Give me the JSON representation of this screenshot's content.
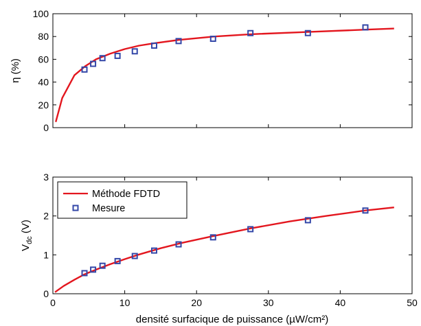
{
  "chart_data": [
    {
      "type": "line",
      "title": "",
      "xlabel": "",
      "ylabel": "η (%)",
      "xlim": [
        0,
        50
      ],
      "ylim": [
        0,
        100
      ],
      "xticks": [],
      "yticks": [
        "0",
        "20",
        "40",
        "60",
        "80",
        "100"
      ],
      "grid": false,
      "legend": null,
      "series": [
        {
          "name": "Méthode FDTD",
          "style": "line",
          "color": "#e3161e",
          "x": [
            0.4,
            1.3,
            3.0,
            4.5,
            6.0,
            8.0,
            10.0,
            12.0,
            14.0,
            17.5,
            22.5,
            27.5,
            35.5,
            43.5,
            47.5
          ],
          "y": [
            5,
            26,
            46,
            54,
            60,
            65,
            69,
            72,
            74,
            77,
            80,
            82,
            84,
            86,
            87
          ]
        },
        {
          "name": "Mesure",
          "style": "markers",
          "color": "#3347a8",
          "x": [
            4.4,
            5.6,
            6.9,
            9.0,
            11.4,
            14.1,
            17.5,
            22.3,
            27.5,
            35.5,
            43.5
          ],
          "y": [
            51,
            56,
            61,
            63,
            67,
            72,
            76,
            78,
            83,
            83,
            88
          ]
        }
      ]
    },
    {
      "type": "line",
      "title": "",
      "xlabel": "densité surfacique de puissance (µW/cm²)",
      "ylabel_main": "V",
      "ylabel_sub": "dc",
      "ylabel_unit": " (V)",
      "xlim": [
        0,
        50
      ],
      "ylim": [
        0,
        3
      ],
      "xticks": [
        "0",
        "10",
        "20",
        "30",
        "40",
        "50"
      ],
      "yticks": [
        "0",
        "1",
        "2",
        "3"
      ],
      "grid": false,
      "legend": "top-left",
      "series": [
        {
          "name": "Méthode FDTD",
          "style": "line",
          "color": "#e3161e",
          "x": [
            0.3,
            1.5,
            3.0,
            4.4,
            6.0,
            8.0,
            10.0,
            12.0,
            15.0,
            18.0,
            22.0,
            27.5,
            33.0,
            38.0,
            43.5,
            47.5
          ],
          "y": [
            0.04,
            0.2,
            0.36,
            0.5,
            0.62,
            0.76,
            0.89,
            1.01,
            1.17,
            1.31,
            1.47,
            1.68,
            1.86,
            2.0,
            2.14,
            2.22
          ]
        },
        {
          "name": "Mesure",
          "style": "markers",
          "color": "#3347a8",
          "x": [
            4.4,
            5.6,
            6.9,
            9.0,
            11.4,
            14.1,
            17.5,
            22.3,
            27.5,
            35.5,
            43.5
          ],
          "y": [
            0.53,
            0.62,
            0.72,
            0.84,
            0.97,
            1.11,
            1.27,
            1.45,
            1.66,
            1.89,
            2.14
          ]
        }
      ]
    }
  ]
}
